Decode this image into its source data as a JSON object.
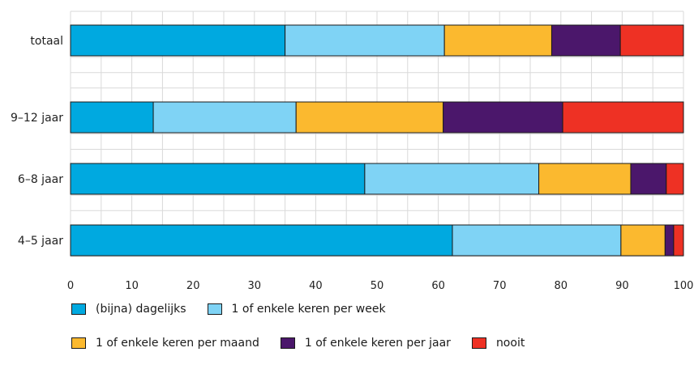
{
  "chart_data": {
    "type": "bar",
    "orientation": "horizontal",
    "stacked": true,
    "title": "",
    "xlabel": "",
    "ylabel": "",
    "xlim": [
      0,
      100
    ],
    "x_ticks": [
      0,
      10,
      20,
      30,
      40,
      50,
      60,
      70,
      80,
      90,
      100
    ],
    "grid": true,
    "legend_position": "bottom",
    "categories": [
      "totaal",
      "9–12 jaar",
      "6–8 jaar",
      "4–5 jaar"
    ],
    "series": [
      {
        "name": "(bijna) dagelijks",
        "color": "#00a9e0",
        "values": [
          35,
          13.5,
          48,
          62.3
        ]
      },
      {
        "name": "1 of enkele keren per week",
        "color": "#7fd3f5",
        "values": [
          26,
          23.3,
          28.4,
          27.5
        ]
      },
      {
        "name": "1 of enkele keren per maand",
        "color": "#fbb92f",
        "values": [
          17.5,
          24,
          15,
          7.2
        ]
      },
      {
        "name": "1 of enkele keren per jaar",
        "color": "#4b176b",
        "values": [
          11.2,
          19.5,
          5.8,
          1.4
        ]
      },
      {
        "name": "nooit",
        "color": "#ee3124",
        "values": [
          10.3,
          19.7,
          2.8,
          1.6
        ]
      }
    ]
  }
}
